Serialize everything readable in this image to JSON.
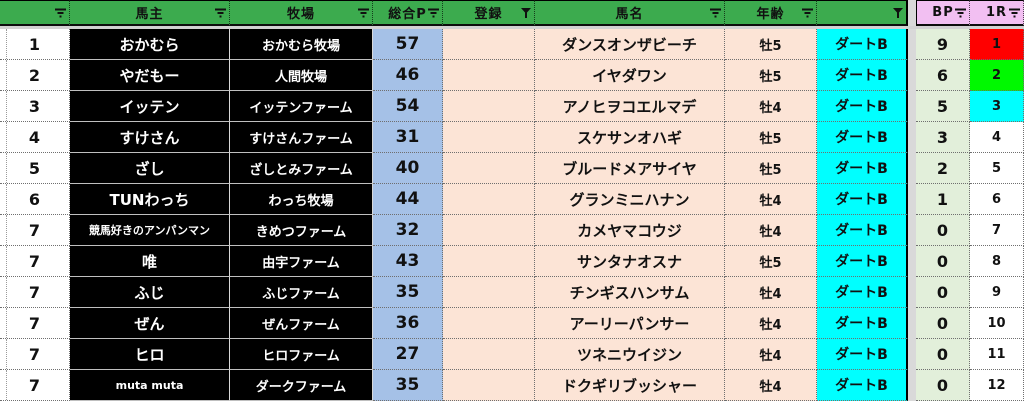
{
  "colors": {
    "header_green": "#3CAB4E",
    "header_pink": "#F2BFF2",
    "column_blue": "#A5C1E7",
    "column_peach": "#FCE4D6",
    "column_cyan": "#00FFFF",
    "column_bp_green": "#E2EFDA",
    "column_black": "#000000",
    "gap_gray": "#D9D9D9",
    "r1_red": "#FF0000",
    "r1_green": "#00F900",
    "r1_cyan": "#00FFFF",
    "r1_white": "#FFFFFF"
  },
  "table": {
    "headers": [
      {
        "key": "rank",
        "label": "",
        "filter": "dropdown"
      },
      {
        "key": "owner",
        "label": "馬主",
        "filter": "dropdown"
      },
      {
        "key": "farm",
        "label": "牧場",
        "filter": "dropdown"
      },
      {
        "key": "total_p",
        "label": "総合P",
        "filter": "dropdown"
      },
      {
        "key": "entry",
        "label": "登録",
        "filter": "funnel"
      },
      {
        "key": "horse",
        "label": "馬名",
        "filter": "dropdown"
      },
      {
        "key": "age",
        "label": "年齢",
        "filter": "dropdown"
      },
      {
        "key": "grade",
        "label": "",
        "filter": "funnel"
      },
      {
        "key": "bp",
        "label": "BP",
        "filter": "dropdown"
      },
      {
        "key": "r1",
        "label": "1R",
        "filter": "dropdown"
      }
    ],
    "rows": [
      {
        "rank": "1",
        "owner": "おかむら",
        "farm": "おかむら牧場",
        "total_p": "57",
        "entry": "",
        "horse": "ダンスオンザビーチ",
        "age": "牡5",
        "grade": "ダートB",
        "bp": "9",
        "r1": "1",
        "r1_bg": "#FF0000"
      },
      {
        "rank": "2",
        "owner": "やだもー",
        "farm": "人間牧場",
        "total_p": "46",
        "entry": "",
        "horse": "イヤダワン",
        "age": "牡5",
        "grade": "ダートB",
        "bp": "6",
        "r1": "2",
        "r1_bg": "#00F900"
      },
      {
        "rank": "3",
        "owner": "イッテン",
        "farm": "イッテンファーム",
        "total_p": "54",
        "entry": "",
        "horse": "アノヒヲコエルマデ",
        "age": "牡4",
        "grade": "ダートB",
        "bp": "5",
        "r1": "3",
        "r1_bg": "#00FFFF"
      },
      {
        "rank": "4",
        "owner": "すけさん",
        "farm": "すけさんファーム",
        "total_p": "31",
        "entry": "",
        "horse": "スケサンオハギ",
        "age": "牡5",
        "grade": "ダートB",
        "bp": "3",
        "r1": "4",
        "r1_bg": "#FFFFFF"
      },
      {
        "rank": "5",
        "owner": "ざし",
        "farm": "ざしとみファーム",
        "total_p": "40",
        "entry": "",
        "horse": "ブルードメアサイヤ",
        "age": "牡5",
        "grade": "ダートB",
        "bp": "2",
        "r1": "5",
        "r1_bg": "#FFFFFF"
      },
      {
        "rank": "6",
        "owner": "TUNわっち",
        "farm": "わっち牧場",
        "total_p": "44",
        "entry": "",
        "horse": "グランミニハナン",
        "age": "牡4",
        "grade": "ダートB",
        "bp": "1",
        "r1": "6",
        "r1_bg": "#FFFFFF"
      },
      {
        "rank": "7",
        "owner": "競馬好きのアンパンマン",
        "farm": "きめつファーム",
        "total_p": "32",
        "entry": "",
        "horse": "カメヤマコウジ",
        "age": "牡4",
        "grade": "ダートB",
        "bp": "0",
        "r1": "7",
        "r1_bg": "#FFFFFF"
      },
      {
        "rank": "7",
        "owner": "唯",
        "farm": "由宇ファーム",
        "total_p": "43",
        "entry": "",
        "horse": "サンタナオスナ",
        "age": "牡5",
        "grade": "ダートB",
        "bp": "0",
        "r1": "8",
        "r1_bg": "#FFFFFF"
      },
      {
        "rank": "7",
        "owner": "ふじ",
        "farm": "ふじファーム",
        "total_p": "35",
        "entry": "",
        "horse": "チンギスハンサム",
        "age": "牡4",
        "grade": "ダートB",
        "bp": "0",
        "r1": "9",
        "r1_bg": "#FFFFFF"
      },
      {
        "rank": "7",
        "owner": "ぜん",
        "farm": "ぜんファーム",
        "total_p": "36",
        "entry": "",
        "horse": "アーリーパンサー",
        "age": "牡4",
        "grade": "ダートB",
        "bp": "0",
        "r1": "10",
        "r1_bg": "#FFFFFF"
      },
      {
        "rank": "7",
        "owner": "ヒロ",
        "farm": "ヒロファーム",
        "total_p": "27",
        "entry": "",
        "horse": "ツネニウイジン",
        "age": "牡4",
        "grade": "ダートB",
        "bp": "0",
        "r1": "11",
        "r1_bg": "#FFFFFF"
      },
      {
        "rank": "7",
        "owner": "muta muta",
        "farm": "ダークファーム",
        "total_p": "35",
        "entry": "",
        "horse": "ドクギリブッシャー",
        "age": "牡4",
        "grade": "ダートB",
        "bp": "0",
        "r1": "12",
        "r1_bg": "#FFFFFF"
      }
    ]
  }
}
